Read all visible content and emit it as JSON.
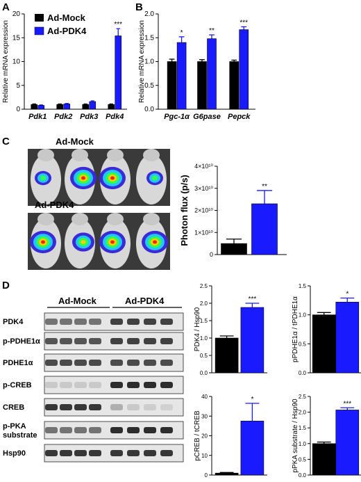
{
  "panels": {
    "A": "A",
    "B": "B",
    "C": "C",
    "D": "D"
  },
  "legend": {
    "mock": "Ad-Mock",
    "pdk4": "Ad-PDK4"
  },
  "colors": {
    "mock": "#000000",
    "pdk4": "#1a1aff"
  },
  "imaging": {
    "mock_title": "Ad-Mock",
    "pdk4_title": "Ad-PDK4",
    "mock_signals": [
      "small",
      "large",
      "large",
      "small"
    ],
    "pdk4_signals": [
      "large",
      "medium",
      "large",
      "large"
    ]
  },
  "blot": {
    "group_mock": "Ad-Mock",
    "group_pdk4": "Ad-PDK4",
    "rows": [
      {
        "label": "PDK4",
        "mock": [
          0.55,
          0.55,
          0.55,
          0.55
        ],
        "pdk4": [
          0.8,
          0.8,
          0.8,
          0.8
        ]
      },
      {
        "label": "p-PDHE1α",
        "mock": [
          0.7,
          0.7,
          0.7,
          0.7
        ],
        "pdk4": [
          0.8,
          0.8,
          0.8,
          0.8
        ]
      },
      {
        "label": "PDHE1α",
        "mock": [
          0.75,
          0.75,
          0.75,
          0.75
        ],
        "pdk4": [
          0.75,
          0.75,
          0.75,
          0.75
        ]
      },
      {
        "label": "p-CREB",
        "mock": [
          0.12,
          0.12,
          0.12,
          0.12
        ],
        "pdk4": [
          0.9,
          0.9,
          0.9,
          0.9
        ]
      },
      {
        "label": "CREB",
        "mock": [
          0.85,
          0.85,
          0.85,
          0.85
        ],
        "pdk4": [
          0.25,
          0.12,
          0.1,
          0.08
        ]
      },
      {
        "label": "p-PKA substrate",
        "mock": [
          0.55,
          0.55,
          0.55,
          0.55
        ],
        "pdk4": [
          0.9,
          0.9,
          0.9,
          0.9
        ]
      },
      {
        "label": "Hsp90",
        "mock": [
          0.85,
          0.85,
          0.85,
          0.85
        ],
        "pdk4": [
          0.85,
          0.85,
          0.85,
          0.85
        ]
      }
    ]
  },
  "chart_data": [
    {
      "id": "A",
      "type": "bar",
      "categories": [
        "Pdk1",
        "Pdk2",
        "Pdk3",
        "Pdk4"
      ],
      "series": [
        {
          "name": "Ad-Mock",
          "values": [
            1.0,
            1.0,
            1.0,
            1.0
          ],
          "errors": [
            0.1,
            0.1,
            0.1,
            0.1
          ]
        },
        {
          "name": "Ad-PDK4",
          "values": [
            0.8,
            1.1,
            1.6,
            15.4
          ],
          "errors": [
            0.1,
            0.1,
            0.15,
            1.5
          ]
        }
      ],
      "significance": [
        "",
        "",
        "",
        "***"
      ],
      "ylabel": "Relative mRNA expression",
      "ylim": [
        0,
        20
      ],
      "yticks": [
        "0",
        "5",
        "10",
        "15",
        "20"
      ],
      "legend": "top-left",
      "italic_x": true
    },
    {
      "id": "B",
      "type": "bar",
      "categories": [
        "Pgc-1α",
        "G6pase",
        "Pepck"
      ],
      "series": [
        {
          "name": "Ad-Mock",
          "values": [
            1.0,
            1.0,
            1.0
          ],
          "errors": [
            0.05,
            0.04,
            0.03
          ]
        },
        {
          "name": "Ad-PDK4",
          "values": [
            1.4,
            1.48,
            1.67
          ],
          "errors": [
            0.12,
            0.08,
            0.06
          ]
        }
      ],
      "significance": [
        "*",
        "**",
        "***"
      ],
      "ylabel": "Relative mRNA expression",
      "ylim": [
        0,
        2.0
      ],
      "yticks": [
        "0.0",
        "0.5",
        "1.0",
        "1.5",
        "2.0"
      ],
      "italic_x": true
    },
    {
      "id": "C",
      "type": "bar",
      "categories": [
        "Ad-Mock",
        "Ad-PDK4"
      ],
      "series": [
        {
          "values": [
            5000000000.0,
            23000000000.0
          ],
          "errors": [
            2000000000.0,
            6000000000.0
          ]
        }
      ],
      "significance": [
        "",
        "**"
      ],
      "ylabel": "Photon flux  (p/s)",
      "ylim": [
        0,
        40000000000.0
      ],
      "yticks": [
        "0",
        "1×10¹⁰",
        "2×10¹⁰",
        "3×10¹⁰",
        "4×10¹⁰"
      ]
    },
    {
      "id": "D1",
      "type": "bar",
      "categories": [
        "Ad-Mock",
        "Ad-PDK4"
      ],
      "series": [
        {
          "values": [
            1.0,
            1.88
          ],
          "errors": [
            0.06,
            0.12
          ]
        }
      ],
      "significance": [
        "",
        "***"
      ],
      "ylabel": "PDK4 / Hsp90",
      "ylim": [
        0,
        2.5
      ],
      "yticks": [
        "0.0",
        "0.5",
        "1.0",
        "1.5",
        "2.0",
        "2.5"
      ]
    },
    {
      "id": "D2",
      "type": "bar",
      "categories": [
        "Ad-Mock",
        "Ad-PDK4"
      ],
      "series": [
        {
          "values": [
            1.0,
            1.22
          ],
          "errors": [
            0.04,
            0.07
          ]
        }
      ],
      "significance": [
        "",
        "*"
      ],
      "ylabel": "pPDHE1α / tPDHE1α",
      "ylim": [
        0,
        1.5
      ],
      "yticks": [
        "0.0",
        "0.5",
        "1.0",
        "1.5"
      ]
    },
    {
      "id": "D3",
      "type": "bar",
      "categories": [
        "Ad-Mock",
        "Ad-PDK4"
      ],
      "series": [
        {
          "values": [
            1.0,
            27.5
          ],
          "errors": [
            0.3,
            9.0
          ]
        }
      ],
      "significance": [
        "",
        "*"
      ],
      "ylabel": "pCREB / tCREB",
      "ylim": [
        0,
        40
      ],
      "yticks": [
        "0",
        "10",
        "20",
        "30",
        "40"
      ]
    },
    {
      "id": "D4",
      "type": "bar",
      "categories": [
        "Ad-Mock",
        "Ad-PDK4"
      ],
      "series": [
        {
          "values": [
            1.0,
            2.07
          ],
          "errors": [
            0.05,
            0.07
          ]
        }
      ],
      "significance": [
        "",
        "***"
      ],
      "ylabel": "pPKA substrate / Hsp90",
      "ylim": [
        0,
        2.5
      ],
      "yticks": [
        "0.0",
        "0.5",
        "1.0",
        "1.5",
        "2.0",
        "2.5"
      ]
    }
  ]
}
